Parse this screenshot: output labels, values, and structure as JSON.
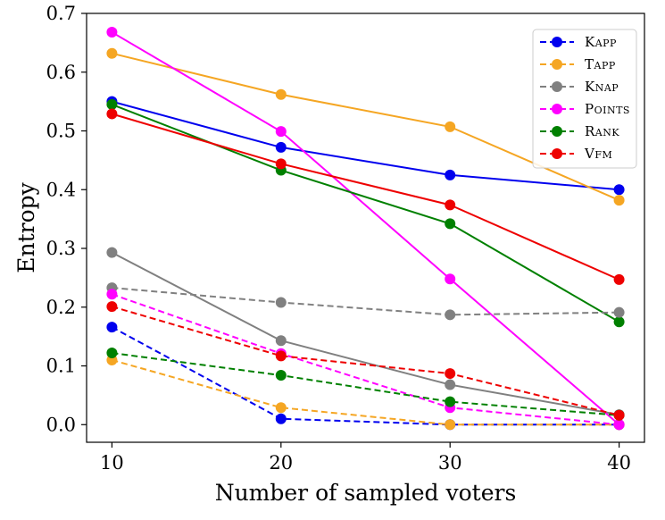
{
  "chart_data": {
    "type": "line",
    "title": "",
    "xlabel": "Number of sampled voters",
    "ylabel": "Entropy",
    "x": [
      10,
      20,
      30,
      40
    ],
    "xlim": [
      8.5,
      41.5
    ],
    "ylim": [
      -0.03,
      0.7
    ],
    "xticks": [
      10,
      20,
      30,
      40
    ],
    "yticks": [
      0.0,
      0.1,
      0.2,
      0.3,
      0.4,
      0.5,
      0.6,
      0.7
    ],
    "ytick_labels": [
      "0.0",
      "0.1",
      "0.2",
      "0.3",
      "0.4",
      "0.5",
      "0.6",
      "0.7"
    ],
    "grid": false,
    "legend_position": "top-right",
    "legend": [
      {
        "label": "Kapp",
        "color": "#0000ee",
        "style": "dashed"
      },
      {
        "label": "Tapp",
        "color": "#f5a623",
        "style": "dashed"
      },
      {
        "label": "Knap",
        "color": "#808080",
        "style": "dashed"
      },
      {
        "label": "Points",
        "color": "#ff00ff",
        "style": "dashed"
      },
      {
        "label": "Rank",
        "color": "#008000",
        "style": "dashed"
      },
      {
        "label": "Vfm",
        "color": "#ee0000",
        "style": "dashed"
      }
    ],
    "series": [
      {
        "name": "Kapp (solid)",
        "color": "#0000ee",
        "style": "solid",
        "values": [
          0.55,
          0.472,
          0.425,
          0.4
        ]
      },
      {
        "name": "Tapp (solid)",
        "color": "#f5a623",
        "style": "solid",
        "values": [
          0.632,
          0.562,
          0.507,
          0.382
        ]
      },
      {
        "name": "Knap (solid)",
        "color": "#808080",
        "style": "solid",
        "values": [
          0.293,
          0.143,
          0.068,
          0.017
        ]
      },
      {
        "name": "Points (solid)",
        "color": "#ff00ff",
        "style": "solid",
        "values": [
          0.668,
          0.499,
          0.248,
          0.0
        ]
      },
      {
        "name": "Rank (solid)",
        "color": "#008000",
        "style": "solid",
        "values": [
          0.545,
          0.433,
          0.342,
          0.175
        ]
      },
      {
        "name": "Vfm (solid)",
        "color": "#ee0000",
        "style": "solid",
        "values": [
          0.529,
          0.444,
          0.374,
          0.247
        ]
      },
      {
        "name": "Kapp (dashed)",
        "color": "#0000ee",
        "style": "dashed",
        "values": [
          0.166,
          0.01,
          0.0,
          0.0
        ]
      },
      {
        "name": "Tapp (dashed)",
        "color": "#f5a623",
        "style": "dashed",
        "values": [
          0.11,
          0.029,
          0.0,
          0.0
        ]
      },
      {
        "name": "Knap (dashed)",
        "color": "#808080",
        "style": "dashed",
        "values": [
          0.233,
          0.208,
          0.187,
          0.191
        ]
      },
      {
        "name": "Points (dashed)",
        "color": "#ff00ff",
        "style": "dashed",
        "values": [
          0.222,
          0.121,
          0.029,
          0.0
        ]
      },
      {
        "name": "Rank (dashed)",
        "color": "#008000",
        "style": "dashed",
        "values": [
          0.122,
          0.084,
          0.039,
          0.016
        ]
      },
      {
        "name": "Vfm (dashed)",
        "color": "#ee0000",
        "style": "dashed",
        "values": [
          0.201,
          0.117,
          0.087,
          0.016
        ]
      }
    ]
  }
}
